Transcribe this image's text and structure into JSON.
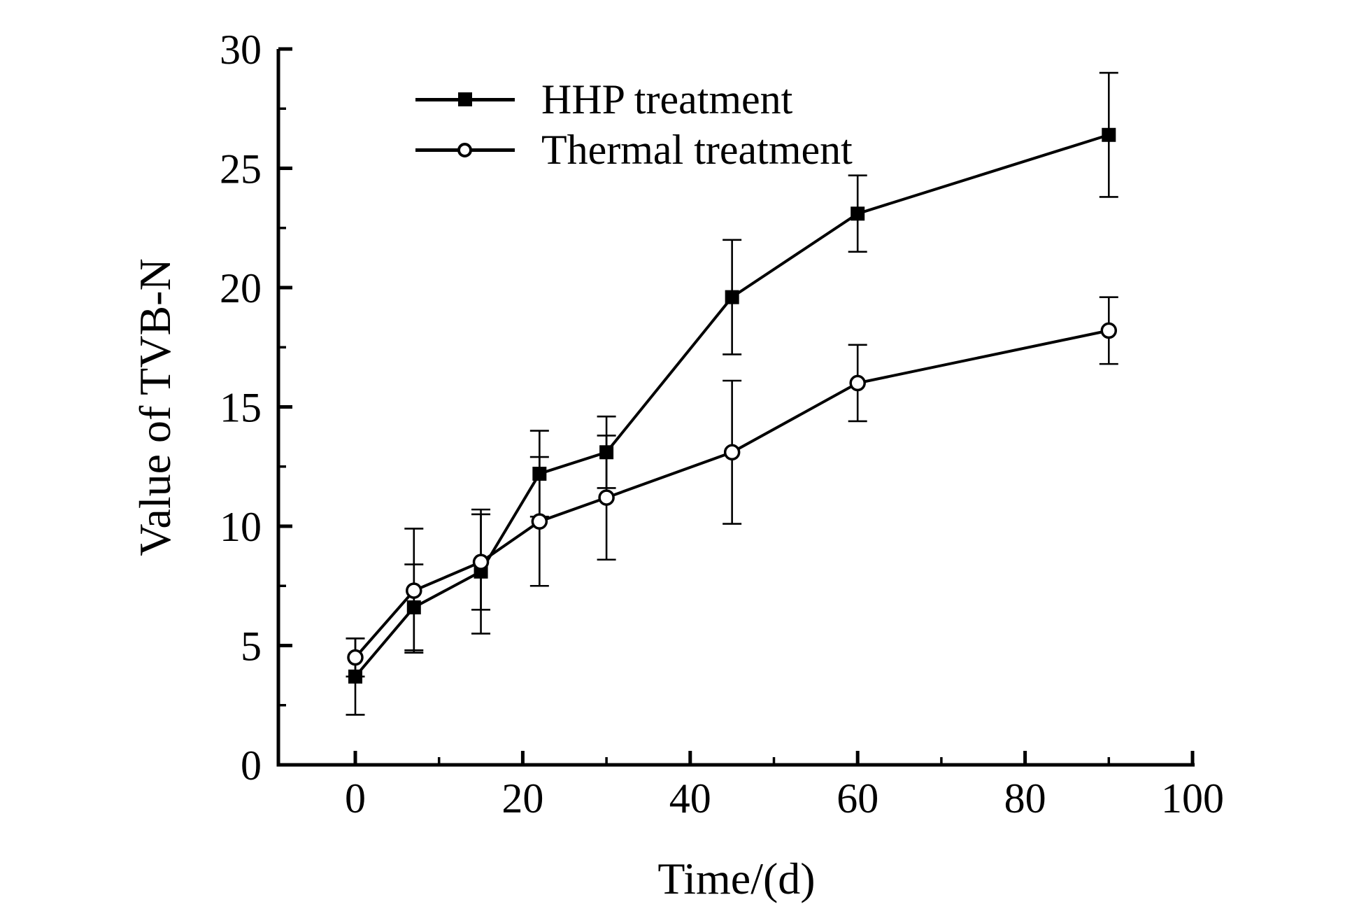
{
  "figure": {
    "background": "#ffffff",
    "axis_color": "#000000"
  },
  "chart_data": {
    "type": "line",
    "title": "",
    "xlabel": "Time/(d)",
    "ylabel": "Value of TVB-N",
    "xlim": [
      0,
      100
    ],
    "ylim": [
      0,
      30
    ],
    "x_ticks": [
      0,
      20,
      40,
      60,
      80,
      100
    ],
    "y_ticks": [
      0,
      5,
      10,
      15,
      20,
      25,
      30
    ],
    "x_minor_step": 10,
    "y_minor_step": 2.5,
    "grid": false,
    "legend_position": "top-left-inside",
    "error_bars": true,
    "x": [
      0,
      7,
      15,
      22,
      30,
      45,
      60,
      90
    ],
    "series": [
      {
        "name": "HHP treatment",
        "marker": "filled-square",
        "color": "#000000",
        "values": [
          3.7,
          6.6,
          8.1,
          12.2,
          13.1,
          19.6,
          23.1,
          26.4
        ],
        "errors": [
          1.6,
          1.8,
          2.6,
          1.8,
          1.5,
          2.4,
          1.6,
          2.6
        ]
      },
      {
        "name": "Thermal treatment",
        "marker": "open-circle",
        "color": "#000000",
        "values": [
          4.5,
          7.3,
          8.5,
          10.2,
          11.2,
          13.1,
          16.0,
          18.2
        ],
        "errors": [
          0.8,
          2.6,
          2.0,
          2.7,
          2.6,
          3.0,
          1.6,
          1.4
        ]
      }
    ]
  }
}
